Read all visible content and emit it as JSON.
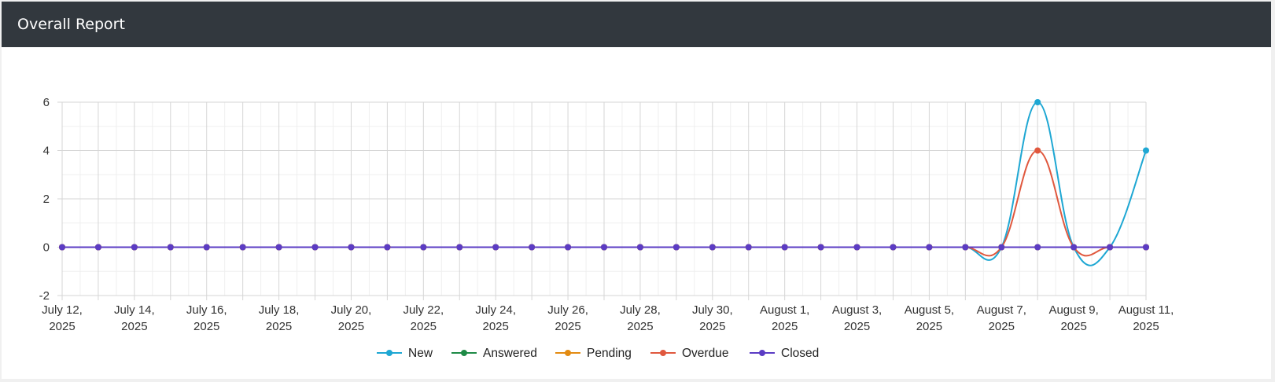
{
  "header": {
    "title": "Overall Report"
  },
  "chart_data": {
    "type": "line",
    "x": [
      "July 12, 2025",
      "July 13, 2025",
      "July 14, 2025",
      "July 15, 2025",
      "July 16, 2025",
      "July 17, 2025",
      "July 18, 2025",
      "July 19, 2025",
      "July 20, 2025",
      "July 21, 2025",
      "July 22, 2025",
      "July 23, 2025",
      "July 24, 2025",
      "July 25, 2025",
      "July 26, 2025",
      "July 27, 2025",
      "July 28, 2025",
      "July 29, 2025",
      "July 30, 2025",
      "July 31, 2025",
      "August 1, 2025",
      "August 2, 2025",
      "August 3, 2025",
      "August 4, 2025",
      "August 5, 2025",
      "August 6, 2025",
      "August 7, 2025",
      "August 8, 2025",
      "August 9, 2025",
      "August 10, 2025",
      "August 11, 2025"
    ],
    "x_tick_labels": [
      [
        "July 12,",
        "2025"
      ],
      [
        "July 14,",
        "2025"
      ],
      [
        "July 16,",
        "2025"
      ],
      [
        "July 18,",
        "2025"
      ],
      [
        "July 20,",
        "2025"
      ],
      [
        "July 22,",
        "2025"
      ],
      [
        "July 24,",
        "2025"
      ],
      [
        "July 26,",
        "2025"
      ],
      [
        "July 28,",
        "2025"
      ],
      [
        "July 30,",
        "2025"
      ],
      [
        "August 1,",
        "2025"
      ],
      [
        "August 3,",
        "2025"
      ],
      [
        "August 5,",
        "2025"
      ],
      [
        "August 7,",
        "2025"
      ],
      [
        "August 9,",
        "2025"
      ],
      [
        "August 11,",
        "2025"
      ]
    ],
    "y_ticks": [
      "6",
      "4",
      "2",
      "0",
      "-2"
    ],
    "ylim": [
      -2,
      6
    ],
    "grid": true,
    "legend_position": "bottom",
    "series": [
      {
        "name": "New",
        "color": "#1ea7d3",
        "values": [
          0,
          0,
          0,
          0,
          0,
          0,
          0,
          0,
          0,
          0,
          0,
          0,
          0,
          0,
          0,
          0,
          0,
          0,
          0,
          0,
          0,
          0,
          0,
          0,
          0,
          0,
          0,
          6,
          0,
          0,
          4
        ]
      },
      {
        "name": "Answered",
        "color": "#1e8a46",
        "values": [
          0,
          0,
          0,
          0,
          0,
          0,
          0,
          0,
          0,
          0,
          0,
          0,
          0,
          0,
          0,
          0,
          0,
          0,
          0,
          0,
          0,
          0,
          0,
          0,
          0,
          0,
          0,
          0,
          0,
          0,
          0
        ]
      },
      {
        "name": "Pending",
        "color": "#e38b12",
        "values": [
          0,
          0,
          0,
          0,
          0,
          0,
          0,
          0,
          0,
          0,
          0,
          0,
          0,
          0,
          0,
          0,
          0,
          0,
          0,
          0,
          0,
          0,
          0,
          0,
          0,
          0,
          0,
          0,
          0,
          0,
          0
        ]
      },
      {
        "name": "Overdue",
        "color": "#e0583e",
        "values": [
          0,
          0,
          0,
          0,
          0,
          0,
          0,
          0,
          0,
          0,
          0,
          0,
          0,
          0,
          0,
          0,
          0,
          0,
          0,
          0,
          0,
          0,
          0,
          0,
          0,
          0,
          0,
          4,
          0,
          0,
          0
        ]
      },
      {
        "name": "Closed",
        "color": "#5b3cc4",
        "values": [
          0,
          0,
          0,
          0,
          0,
          0,
          0,
          0,
          0,
          0,
          0,
          0,
          0,
          0,
          0,
          0,
          0,
          0,
          0,
          0,
          0,
          0,
          0,
          0,
          0,
          0,
          0,
          0,
          0,
          0,
          0
        ]
      }
    ]
  }
}
